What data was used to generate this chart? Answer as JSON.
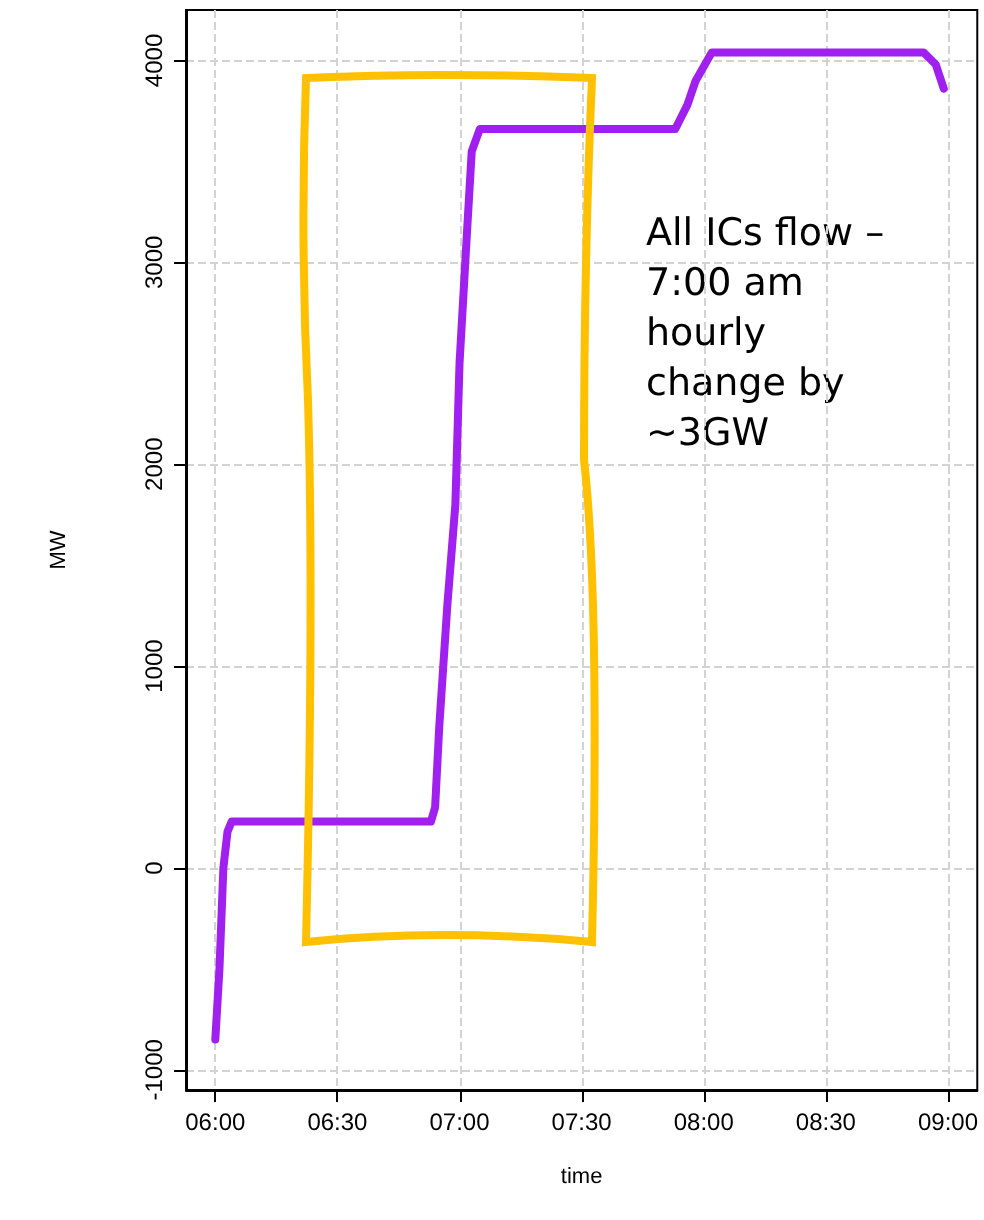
{
  "chart_data": {
    "type": "line",
    "xlabel": "time",
    "ylabel": "MW",
    "x": [
      6.0,
      6.017,
      6.033,
      6.05,
      6.067,
      6.2,
      6.5,
      6.8,
      6.883,
      6.9,
      6.917,
      6.95,
      6.983,
      7.0,
      7.033,
      7.05,
      7.083,
      7.3,
      7.6,
      7.883,
      7.9,
      7.933,
      7.967,
      8.033,
      8.3,
      8.6,
      8.9,
      8.95,
      8.983
    ],
    "series": [
      {
        "color": "#a020f0",
        "values": [
          -850,
          -500,
          0,
          180,
          230,
          230,
          230,
          230,
          230,
          300,
          700,
          1300,
          1800,
          2500,
          3200,
          3550,
          3660,
          3660,
          3660,
          3660,
          3700,
          3780,
          3900,
          4040,
          4040,
          4040,
          4040,
          3980,
          3860
        ]
      }
    ],
    "xlim": [
      5.88,
      9.12
    ],
    "ylim": [
      -1100,
      4250
    ],
    "xticks": [
      {
        "value": 6,
        "label": "06:00"
      },
      {
        "value": 6.5,
        "label": "06:30"
      },
      {
        "value": 7,
        "label": "07:00"
      },
      {
        "value": 7.5,
        "label": "07:30"
      },
      {
        "value": 8,
        "label": "08:00"
      },
      {
        "value": 8.5,
        "label": "08:30"
      },
      {
        "value": 9,
        "label": "09:00"
      }
    ],
    "yticks": [
      -1000,
      0,
      1000,
      2000,
      3000,
      4000
    ],
    "grid": true,
    "marker": "none",
    "line_style": "solid",
    "annotations": [
      "All ICs flow –\n7:00 am\nhourly\nchange by\n~3GW"
    ]
  }
}
